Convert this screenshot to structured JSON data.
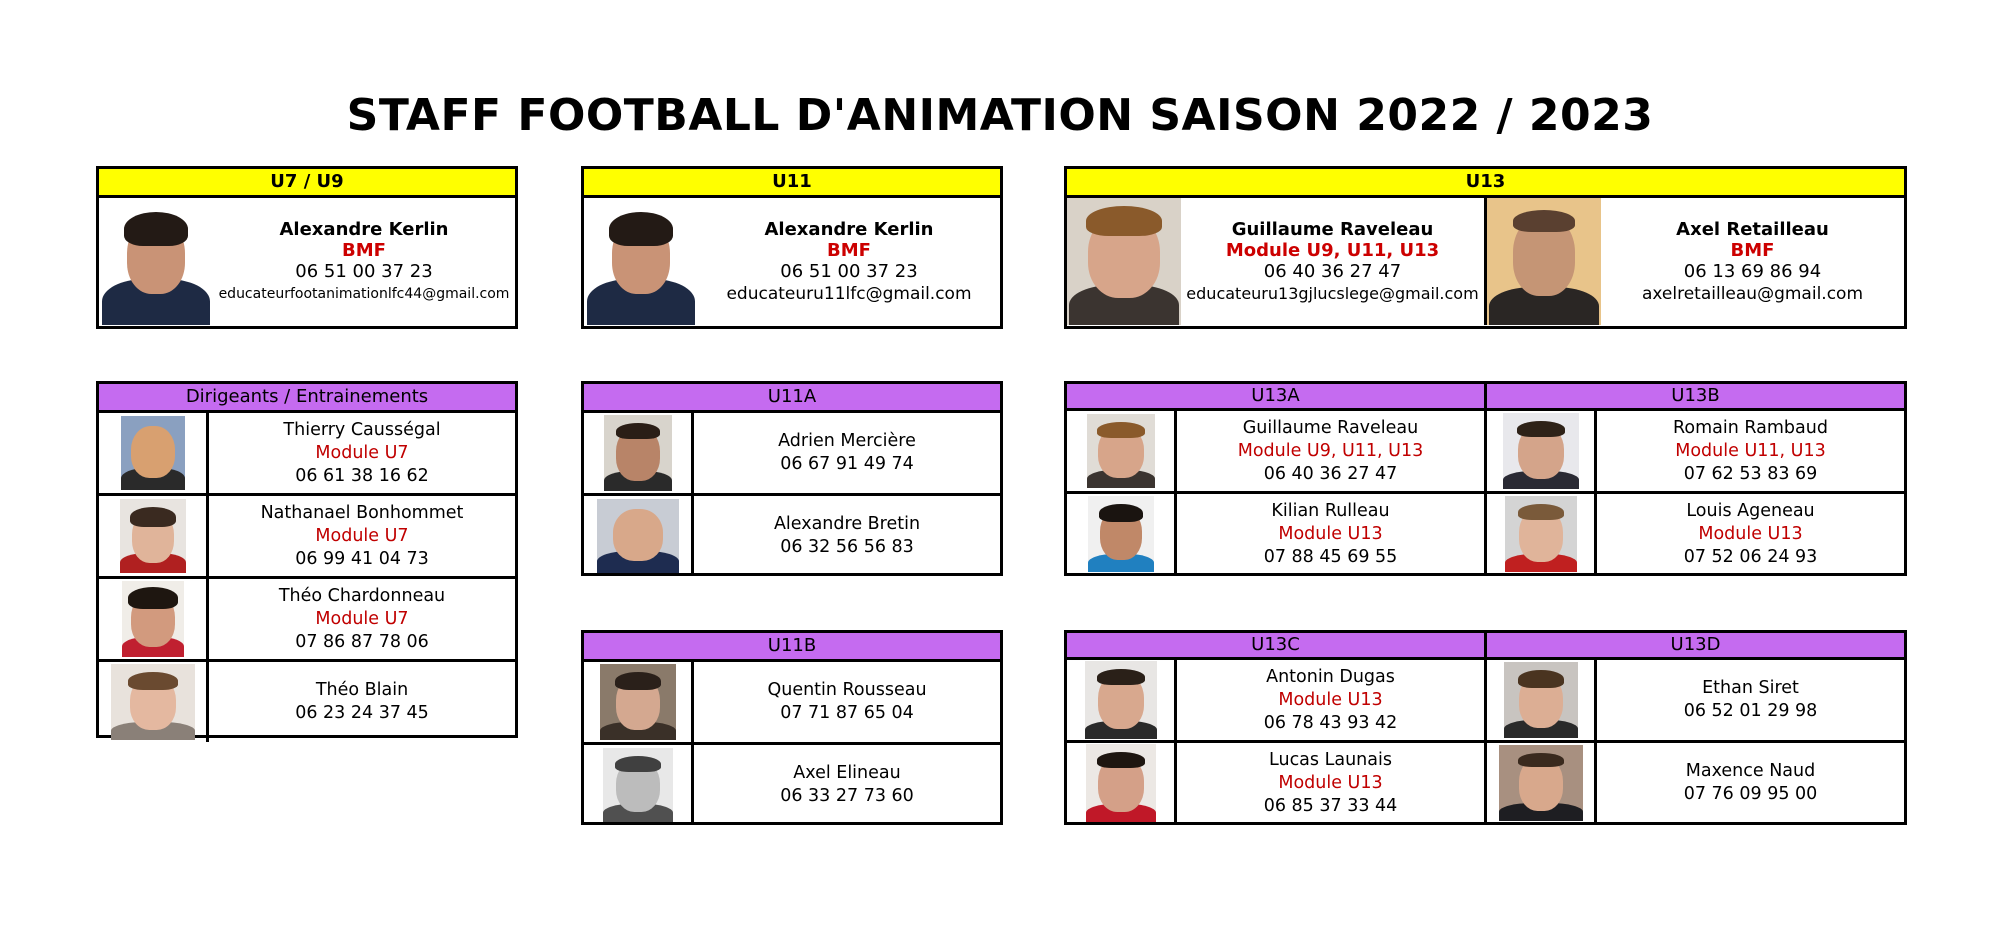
{
  "title": "STAFF FOOTBALL D'ANIMATION SAISON 2022 / 2023",
  "colors": {
    "yellow_header": "#ffff00",
    "violet_header": "#c56bf0",
    "red_text": "#c00000"
  },
  "u7u9": {
    "header": "U7 / U9",
    "coach": {
      "name": "Alexandre Kerlin",
      "diploma": "BMF",
      "phone": "06 51 00 37 23",
      "email": "educateurfootanimationlfc44@gmail.com"
    }
  },
  "u11": {
    "header": "U11",
    "coach": {
      "name": "Alexandre Kerlin",
      "diploma": "BMF",
      "phone": "06 51 00 37 23",
      "email": "educateuru11lfc@gmail.com"
    }
  },
  "u13": {
    "header": "U13",
    "coach1": {
      "name": "Guillaume Raveleau",
      "diploma": "Module U9, U11, U13",
      "phone": "06 40 36 27 47",
      "email": "educateuru13gjlucslege@gmail.com"
    },
    "coach2": {
      "name": "Axel Retailleau",
      "diploma": "BMF",
      "phone": "06 13 69 86 94",
      "email": "axelretailleau@gmail.com"
    }
  },
  "dirigeants": {
    "header": "Dirigeants / Entrainements",
    "members": [
      {
        "name": "Thierry Causségal",
        "module": "Module U7",
        "phone": "06 61 38 16 62"
      },
      {
        "name": "Nathanael Bonhommet",
        "module": "Module U7",
        "phone": "06 99 41 04 73"
      },
      {
        "name": "Théo Chardonneau",
        "module": "Module U7",
        "phone": "07 86 87 78 06"
      },
      {
        "name": "Théo Blain",
        "phone": "06 23 24 37 45"
      }
    ]
  },
  "u11a": {
    "header": "U11A",
    "members": [
      {
        "name": "Adrien Mercière",
        "phone": "06 67 91 49 74"
      },
      {
        "name": "Alexandre Bretin",
        "phone": "06 32 56 56 83"
      }
    ]
  },
  "u11b": {
    "header": "U11B",
    "members": [
      {
        "name": "Quentin Rousseau",
        "phone": "07 71 87 65 04"
      },
      {
        "name": "Axel Elineau",
        "phone": "06 33 27 73 60"
      }
    ]
  },
  "u13a": {
    "header": "U13A",
    "members": [
      {
        "name": "Guillaume Raveleau",
        "module": "Module U9, U11, U13",
        "phone": "06 40 36 27 47"
      },
      {
        "name": "Kilian Rulleau",
        "module": "Module U13",
        "phone": "07 88 45 69 55"
      }
    ]
  },
  "u13b": {
    "header": "U13B",
    "members": [
      {
        "name": "Romain Rambaud",
        "module": "Module U11, U13",
        "phone": "07 62 53 83 69"
      },
      {
        "name": "Louis Ageneau",
        "module": "Module U13",
        "phone": "07 52 06 24 93"
      }
    ]
  },
  "u13c": {
    "header": "U13C",
    "members": [
      {
        "name": "Antonin Dugas",
        "module": "Module U13",
        "phone": "06 78 43 93 42"
      },
      {
        "name": "Lucas Launais",
        "module": "Module U13",
        "phone": "06 85 37 33 44"
      }
    ]
  },
  "u13d": {
    "header": "U13D",
    "members": [
      {
        "name": "Ethan Siret",
        "phone": "06 52 01 29 98"
      },
      {
        "name": "Maxence Naud",
        "phone": "07 76 09 95 00"
      }
    ]
  }
}
